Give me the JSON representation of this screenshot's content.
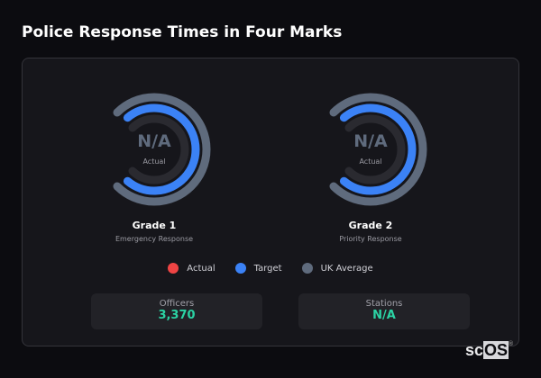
{
  "title": "Police Response Times in Four Marks",
  "colors": {
    "actual": "#ef4444",
    "target": "#3b82f6",
    "uk_average": "#5f6b7d",
    "track": "#2a2a30",
    "accent": "#2bd3a4"
  },
  "gauges": [
    {
      "value": "N/A",
      "value_label": "Actual",
      "name": "Grade 1",
      "description": "Emergency Response"
    },
    {
      "value": "N/A",
      "value_label": "Actual",
      "name": "Grade 2",
      "description": "Priority Response"
    }
  ],
  "legend": [
    {
      "label": "Actual",
      "color": "#ef4444"
    },
    {
      "label": "Target",
      "color": "#3b82f6"
    },
    {
      "label": "UK Average",
      "color": "#5f6b7d"
    }
  ],
  "stats": [
    {
      "label": "Officers",
      "value": "3,370"
    },
    {
      "label": "Stations",
      "value": "N/A"
    }
  ],
  "logo": {
    "text_plain": "sc",
    "text_box": "OS",
    "mark": "®"
  }
}
